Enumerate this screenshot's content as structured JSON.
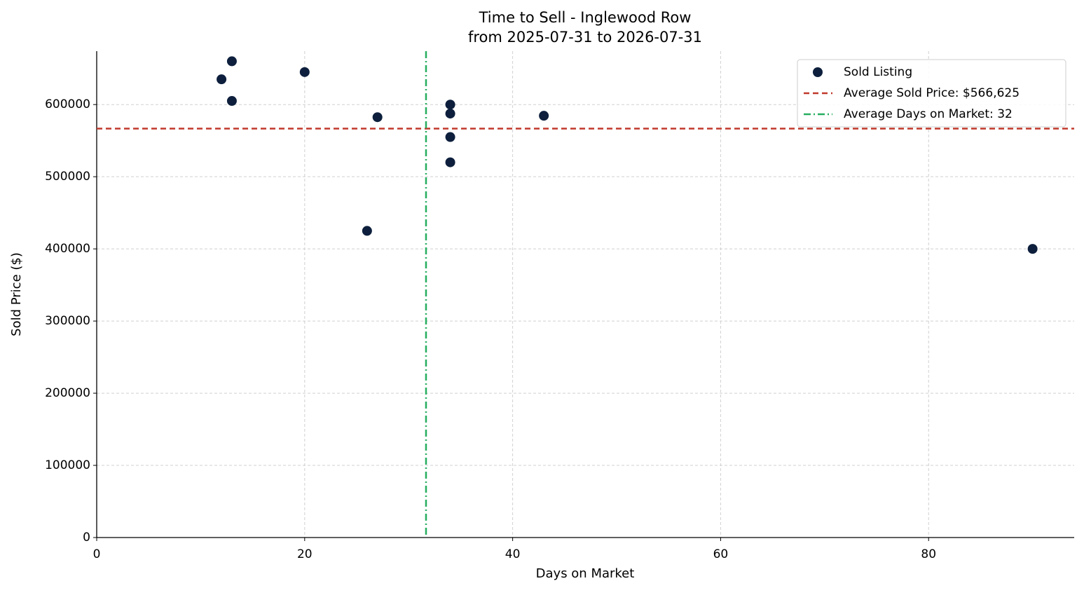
{
  "chart_data": {
    "type": "scatter",
    "title": "Time to Sell - Inglewood Row",
    "subtitle": "from 2025-07-31 to 2026-07-31",
    "x_label": "Days on Market",
    "y_label": "Sold Price ($)",
    "series": [
      {
        "name": "Sold Listing",
        "color": "#0d1f3c",
        "x": [
          12,
          13,
          13,
          20,
          27,
          26,
          34,
          34,
          34,
          34,
          43,
          90
        ],
        "values": [
          635000,
          660000,
          605000,
          645000,
          582500,
          425000,
          600000,
          587500,
          555000,
          520000,
          584500,
          400000
        ]
      }
    ],
    "hlines": [
      {
        "name": "Average Sold Price: $566,625",
        "value": 566625,
        "color": "#c0392b",
        "dash": "8 5"
      }
    ],
    "vlines": [
      {
        "name": "Average Days on Market: 32",
        "value": 31.67,
        "color": "#27ae60",
        "dash": "10 4 2 4"
      }
    ],
    "xlim": [
      0,
      94
    ],
    "xticks": [
      0,
      20,
      40,
      60,
      80
    ],
    "ylim": [
      0,
      674000
    ],
    "yticks": [
      0,
      100000,
      200000,
      300000,
      400000,
      500000,
      600000
    ],
    "grid": true,
    "legend": "upper right"
  }
}
